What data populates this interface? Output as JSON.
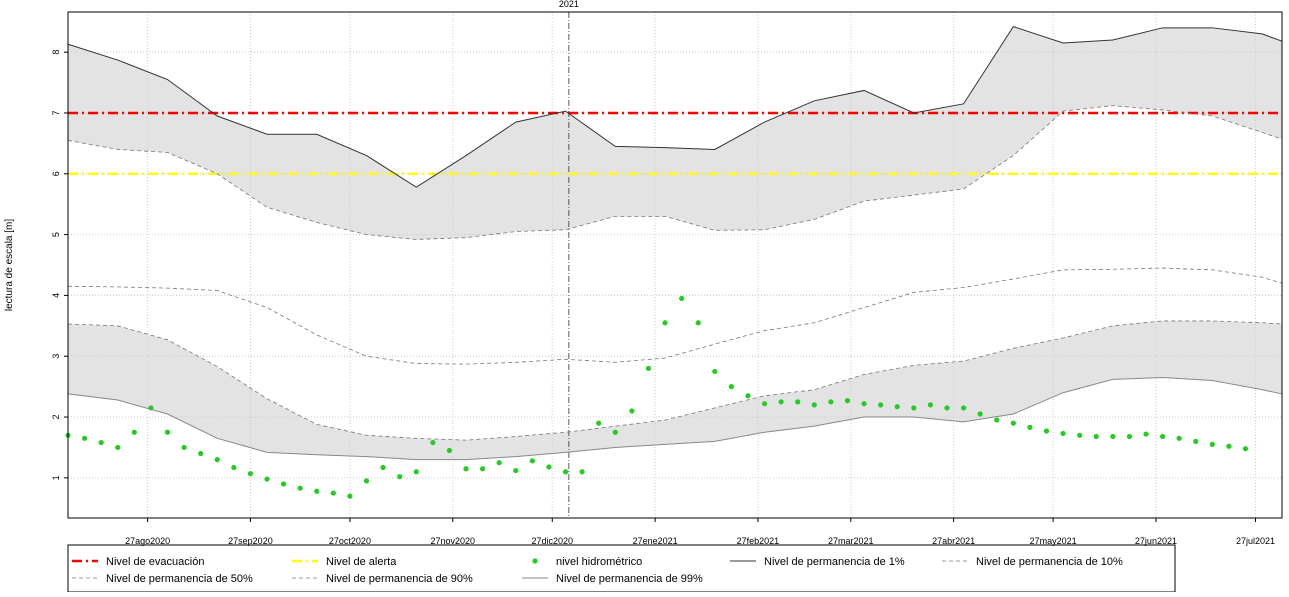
{
  "chart_data": {
    "type": "line",
    "ylabel": "lectura de escala [m]",
    "xlim": [
      -24,
      342
    ],
    "ylim": [
      0.34,
      8.66
    ],
    "yticks": [
      1,
      2,
      3,
      4,
      5,
      6,
      7,
      8
    ],
    "xticks": [
      {
        "value": 0,
        "label": "27ago2020"
      },
      {
        "value": 31,
        "label": "27sep2020"
      },
      {
        "value": 61,
        "label": "27oct2020"
      },
      {
        "value": 92,
        "label": "27nov2020"
      },
      {
        "value": 122,
        "label": "27dic2020"
      },
      {
        "value": 153,
        "label": "27ene2021"
      },
      {
        "value": 184,
        "label": "27feb2021"
      },
      {
        "value": 212,
        "label": "27mar2021"
      },
      {
        "value": 243,
        "label": "27abr2021"
      },
      {
        "value": 273,
        "label": "27may2021"
      },
      {
        "value": 304,
        "label": "27jun2021"
      },
      {
        "value": 334,
        "label": "27jul2021"
      }
    ],
    "grid": true,
    "band_color": "#e3e3e3",
    "year_marker": {
      "x": 127,
      "label": "2021"
    },
    "series": [
      {
        "name": "Nivel de evacuación",
        "color": "#ff0000",
        "style": "dashdot",
        "x": [
          -24,
          342
        ],
        "values": [
          7,
          7
        ]
      },
      {
        "name": "Nivel de alerta",
        "color": "#ffff00",
        "style": "dashdot",
        "x": [
          -24,
          342
        ],
        "values": [
          6,
          6
        ]
      },
      {
        "name": "nivel hidrométrico",
        "color": "#22cc22",
        "style": "points",
        "x": [
          -24,
          -19,
          -14,
          -9,
          -4,
          1,
          6,
          11,
          16,
          21,
          26,
          31,
          36,
          41,
          46,
          51,
          56,
          61,
          66,
          71,
          76,
          81,
          86,
          91,
          96,
          101,
          106,
          111,
          116,
          121,
          126,
          131,
          136,
          141,
          146,
          151,
          156,
          161,
          166,
          171,
          176,
          181,
          186,
          191,
          196,
          201,
          206,
          211,
          216,
          221,
          226,
          231,
          236,
          241,
          246,
          251,
          256,
          261,
          266,
          271,
          276,
          281,
          286,
          291,
          296,
          301,
          306,
          311,
          316,
          321,
          326,
          331
        ],
        "values": [
          1.7,
          1.65,
          1.58,
          1.5,
          1.75,
          2.15,
          1.75,
          1.5,
          1.4,
          1.3,
          1.17,
          1.07,
          0.98,
          0.9,
          0.83,
          0.78,
          0.75,
          0.7,
          0.95,
          1.17,
          1.02,
          1.1,
          1.58,
          1.45,
          1.15,
          1.15,
          1.25,
          1.12,
          1.28,
          1.18,
          1.1,
          1.1,
          1.9,
          1.75,
          2.1,
          2.8,
          3.55,
          3.95,
          3.55,
          2.75,
          2.5,
          2.35,
          2.22,
          2.25,
          2.25,
          2.2,
          2.25,
          2.27,
          2.22,
          2.2,
          2.17,
          2.15,
          2.2,
          2.15,
          2.15,
          2.05,
          1.95,
          1.9,
          1.83,
          1.77,
          1.73,
          1.7,
          1.68,
          1.68,
          1.68,
          1.72,
          1.68,
          1.65,
          1.6,
          1.55,
          1.52,
          1.48
        ]
      },
      {
        "name": "Nivel de permanencia de 1%",
        "color": "#333333",
        "style": "solid",
        "x": [
          -24,
          -9,
          6,
          21,
          36,
          51,
          66,
          81,
          96,
          111,
          126,
          141,
          156,
          171,
          186,
          201,
          216,
          231,
          246,
          261,
          276,
          291,
          306,
          321,
          336,
          342
        ],
        "values": [
          8.13,
          7.87,
          7.55,
          6.95,
          6.65,
          6.65,
          6.3,
          5.78,
          6.3,
          6.85,
          7.03,
          6.45,
          6.43,
          6.4,
          6.85,
          7.2,
          7.37,
          7.0,
          7.15,
          8.42,
          8.15,
          8.2,
          8.4,
          8.4,
          8.3,
          8.18
        ]
      },
      {
        "name": "Nivel de permanencia de 10%",
        "color": "#777777",
        "style": "dashed",
        "x": [
          -24,
          -9,
          6,
          21,
          36,
          51,
          66,
          81,
          96,
          111,
          126,
          141,
          156,
          171,
          186,
          201,
          216,
          231,
          246,
          261,
          276,
          291,
          306,
          321,
          336,
          342
        ],
        "values": [
          6.55,
          6.4,
          6.35,
          6.0,
          5.45,
          5.2,
          5.0,
          4.92,
          4.95,
          5.05,
          5.08,
          5.3,
          5.3,
          5.07,
          5.08,
          5.25,
          5.55,
          5.65,
          5.75,
          6.3,
          7.03,
          7.12,
          7.05,
          6.95,
          6.68,
          6.57
        ]
      },
      {
        "name": "Nivel de permanencia de 50%",
        "color": "#777777",
        "style": "dashed",
        "x": [
          -24,
          -9,
          6,
          21,
          36,
          51,
          66,
          81,
          96,
          111,
          126,
          141,
          156,
          171,
          186,
          201,
          216,
          231,
          246,
          261,
          276,
          291,
          306,
          321,
          336,
          342
        ],
        "values": [
          4.15,
          4.14,
          4.12,
          4.08,
          3.8,
          3.35,
          3.0,
          2.88,
          2.87,
          2.9,
          2.95,
          2.9,
          2.97,
          3.2,
          3.42,
          3.55,
          3.8,
          4.05,
          4.13,
          4.27,
          4.42,
          4.43,
          4.45,
          4.42,
          4.3,
          4.2
        ]
      },
      {
        "name": "Nivel de permanencia de 90%",
        "color": "#777777",
        "style": "dashed",
        "x": [
          -24,
          -9,
          6,
          21,
          36,
          51,
          66,
          81,
          96,
          111,
          126,
          141,
          156,
          171,
          186,
          201,
          216,
          231,
          246,
          261,
          276,
          291,
          306,
          321,
          336,
          342
        ],
        "values": [
          3.53,
          3.5,
          3.27,
          2.83,
          2.3,
          1.88,
          1.7,
          1.65,
          1.62,
          1.68,
          1.75,
          1.85,
          1.95,
          2.15,
          2.35,
          2.45,
          2.7,
          2.85,
          2.92,
          3.13,
          3.3,
          3.5,
          3.58,
          3.58,
          3.55,
          3.53
        ]
      },
      {
        "name": "Nivel de permanencia de 99%",
        "color": "#888888",
        "style": "solid",
        "x": [
          -24,
          -9,
          6,
          21,
          36,
          51,
          66,
          81,
          96,
          111,
          126,
          141,
          156,
          171,
          186,
          201,
          216,
          231,
          246,
          261,
          276,
          291,
          306,
          321,
          336,
          342
        ],
        "values": [
          2.38,
          2.28,
          2.05,
          1.65,
          1.42,
          1.38,
          1.35,
          1.3,
          1.3,
          1.35,
          1.42,
          1.5,
          1.55,
          1.6,
          1.75,
          1.85,
          2.0,
          2.0,
          1.92,
          2.05,
          2.4,
          2.62,
          2.65,
          2.6,
          2.45,
          2.38
        ]
      }
    ]
  }
}
